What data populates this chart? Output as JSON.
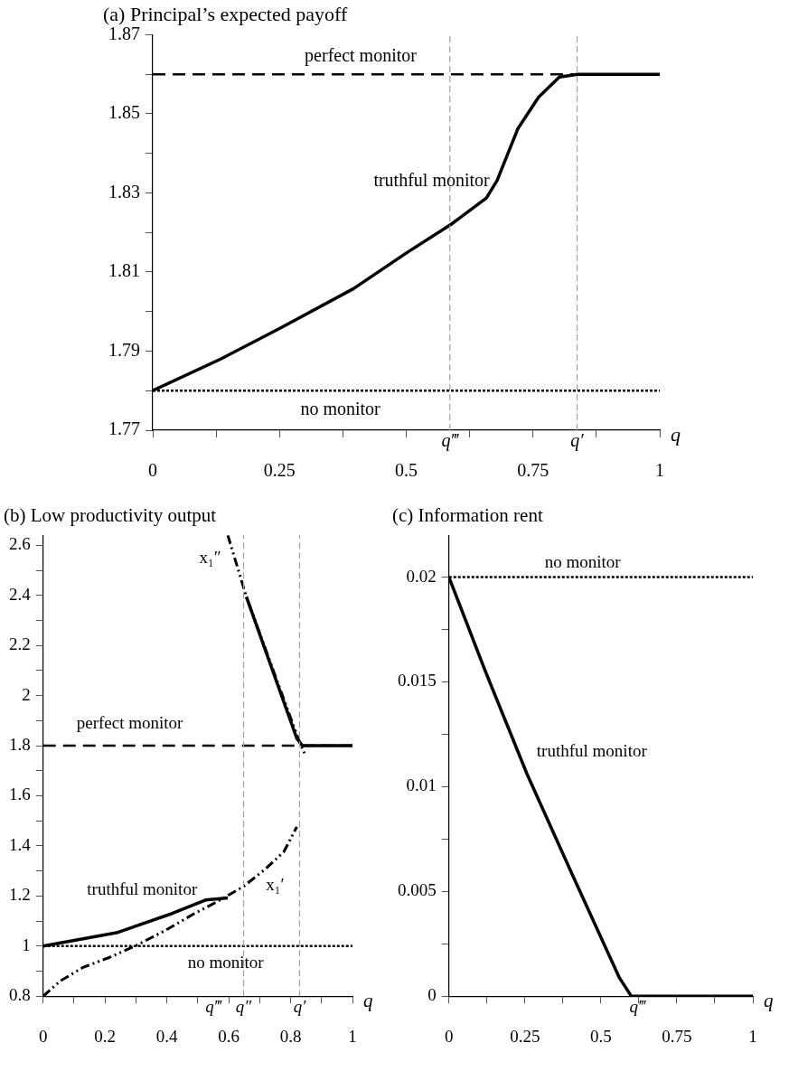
{
  "chart_data": [
    {
      "type": "line",
      "title": "(a) Principal’s expected payoff",
      "xlabel": "q",
      "xlim": [
        0,
        1
      ],
      "ylim": [
        1.77,
        1.87
      ],
      "xticks": [
        0,
        {
          "value": 0.125,
          "label": null
        },
        0.25,
        {
          "value": 0.375,
          "label": null
        },
        0.5,
        {
          "value": 0.625,
          "label": null
        },
        0.75,
        {
          "value": 0.875,
          "label": null
        },
        1
      ],
      "yticks": [
        1.77,
        {
          "value": 1.78,
          "label": null
        },
        1.79,
        {
          "value": 1.8,
          "label": null
        },
        1.81,
        {
          "value": 1.82,
          "label": null
        },
        1.83,
        {
          "value": 1.84,
          "label": null
        },
        1.85,
        {
          "value": 1.86,
          "label": null
        },
        1.87
      ],
      "series": [
        {
          "name": "perfect monitor",
          "color": "#000000",
          "line_style": "dashed",
          "x": [
            0,
            1
          ],
          "values": [
            1.86,
            1.86
          ]
        },
        {
          "name": "truthful monitor",
          "color": "#000000",
          "line_style": "solid",
          "x": [
            0,
            0.134,
            0.25,
            0.396,
            0.499,
            0.589,
            0.658,
            0.679,
            0.72,
            0.761,
            0.802,
            0.838,
            1
          ],
          "values": [
            1.78,
            1.788,
            1.7957,
            1.8058,
            1.8147,
            1.8221,
            1.8287,
            1.8331,
            1.8462,
            1.8542,
            1.8593,
            1.86,
            1.86
          ]
        },
        {
          "name": "no monitor",
          "color": "#000000",
          "line_style": "dotted",
          "x": [
            0,
            1
          ],
          "values": [
            1.78,
            1.78
          ]
        }
      ],
      "ref_lines": [
        {
          "axis": "x",
          "value": 0.586,
          "label": "q‴",
          "color": "#a0a0a0",
          "line_style": "dashed"
        },
        {
          "axis": "x",
          "value": 0.837,
          "label": "q′",
          "color": "#a0a0a0",
          "line_style": "dashed"
        }
      ],
      "legend": false
    },
    {
      "type": "line",
      "title": "(b) Low productivity output",
      "xlabel": "q",
      "xlim": [
        0,
        1
      ],
      "ylim": [
        0.8,
        2.64
      ],
      "xticks": [
        0,
        {
          "value": 0.1,
          "label": null
        },
        0.2,
        {
          "value": 0.3,
          "label": null
        },
        0.4,
        {
          "value": 0.5,
          "label": null
        },
        0.6,
        {
          "value": 0.7,
          "label": null
        },
        0.8,
        {
          "value": 0.9,
          "label": null
        },
        1
      ],
      "yticks": [
        0.8,
        {
          "value": 0.9,
          "label": null
        },
        1,
        {
          "value": 1.1,
          "label": null
        },
        1.2,
        {
          "value": 1.3,
          "label": null
        },
        1.4,
        {
          "value": 1.5,
          "label": null
        },
        1.6,
        {
          "value": 1.7,
          "label": null
        },
        1.8,
        {
          "value": 1.9,
          "label": null
        },
        2,
        {
          "value": 2.1,
          "label": null
        },
        2.2,
        {
          "value": 2.3,
          "label": null
        },
        2.4,
        {
          "value": 2.5,
          "label": null
        },
        2.6
      ],
      "series": [
        {
          "name": "perfect monitor",
          "color": "#000000",
          "line_style": "dashed",
          "x": [
            0,
            1
          ],
          "values": [
            1.8,
            1.8
          ]
        },
        {
          "name": "no monitor",
          "color": "#000000",
          "line_style": "dotted",
          "x": [
            0,
            1
          ],
          "values": [
            1,
            1
          ]
        },
        {
          "name": "x₁′",
          "color": "#000000",
          "line_style": "dashdot",
          "x": [
            0,
            0.056,
            0.129,
            0.213,
            0.297,
            0.393,
            0.489,
            0.561,
            0.648,
            0.718,
            0.778,
            0.82
          ],
          "values": [
            0.8,
            0.861,
            0.915,
            0.954,
            1,
            1.061,
            1.13,
            1.176,
            1.238,
            1.307,
            1.376,
            1.476
          ]
        },
        {
          "name": "x₁″",
          "color": "#000000",
          "line_style": "dashdot",
          "x": [
            0.597,
            0.657,
            0.83,
            0.845
          ],
          "values": [
            2.64,
            2.394,
            1.81,
            1.77
          ]
        },
        {
          "name": "truthful monitor",
          "color": "#000000",
          "line_style": "solid",
          "x": [
            0,
            0.237,
            0.417,
            0.525,
            0.597,
            0.63,
            0.657,
            0.82,
            0.838,
            1
          ],
          "values": [
            1,
            1.053,
            1.13,
            1.184,
            1.192,
            null,
            2.394,
            1.829,
            1.8,
            1.8
          ]
        }
      ],
      "ref_lines": [
        {
          "axis": "x",
          "value": 0.648,
          "label": "q″",
          "color": "#a0a0a0",
          "line_style": "dashed"
        },
        {
          "axis": "x",
          "value": 0.829,
          "label": "q′",
          "color": "#a0a0a0",
          "line_style": "dashed"
        }
      ],
      "annotations": [
        "q‴"
      ]
    },
    {
      "type": "line",
      "title": "(c) Information rent",
      "xlabel": "q",
      "xlim": [
        0,
        1
      ],
      "ylim": [
        0,
        0.022
      ],
      "xticks": [
        0,
        {
          "value": 0.125,
          "label": null
        },
        0.25,
        {
          "value": 0.375,
          "label": null
        },
        0.5,
        {
          "value": 0.625,
          "label": null
        },
        0.75,
        {
          "value": 0.875,
          "label": null
        },
        1
      ],
      "yticks": [
        0,
        {
          "value": 0.0025,
          "label": null
        },
        0.005,
        {
          "value": 0.0075,
          "label": null
        },
        0.01,
        {
          "value": 0.0125,
          "label": null
        },
        0.015,
        {
          "value": 0.0175,
          "label": null
        },
        0.02
      ],
      "series": [
        {
          "name": "no monitor",
          "color": "#000000",
          "line_style": "dotted",
          "x": [
            0,
            1
          ],
          "values": [
            0.02,
            0.02
          ]
        },
        {
          "name": "truthful monitor",
          "color": "#000000",
          "line_style": "solid",
          "x": [
            0,
            0.12,
            0.257,
            0.406,
            0.56,
            0.6,
            1
          ],
          "values": [
            0.02,
            0.0155,
            0.0106,
            0.0058,
            0.0009,
            0,
            0
          ]
        }
      ],
      "annotations": [
        "q‴"
      ]
    }
  ]
}
